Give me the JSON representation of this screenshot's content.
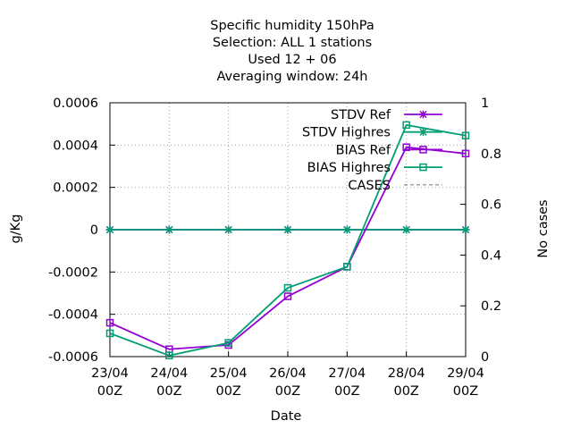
{
  "chart_data": {
    "type": "line",
    "title_lines": [
      "Specific humidity 150hPa",
      "Selection: ALL      1 stations",
      "Used  12 + 06",
      "Averaging window: 24h"
    ],
    "xlabel": "Date",
    "ylabel": "g/Kg",
    "y2label": "No cases",
    "x_ticks": [
      {
        "line1": "23/04",
        "line2": "00Z"
      },
      {
        "line1": "24/04",
        "line2": "00Z"
      },
      {
        "line1": "25/04",
        "line2": "00Z"
      },
      {
        "line1": "26/04",
        "line2": "00Z"
      },
      {
        "line1": "27/04",
        "line2": "00Z"
      },
      {
        "line1": "28/04",
        "line2": "00Z"
      },
      {
        "line1": "29/04",
        "line2": "00Z"
      }
    ],
    "ylim": [
      -0.0006,
      0.0006
    ],
    "y_ticks": [
      -0.0006,
      -0.0004,
      -0.0002,
      0,
      0.0002,
      0.0004,
      0.0006
    ],
    "y_tick_labels": [
      "-0.0006",
      "-0.0004",
      "-0.0002",
      "0",
      "0.0002",
      "0.0004",
      "0.0006"
    ],
    "y2lim": [
      0,
      1
    ],
    "y2_ticks": [
      0,
      0.2,
      0.4,
      0.6,
      0.8,
      1
    ],
    "y2_tick_labels": [
      "0",
      "0.2",
      "0.4",
      "0.6",
      "0.8",
      "1"
    ],
    "grid": true,
    "legend_position": "top-right",
    "series": [
      {
        "name": "STDV Ref",
        "color": "#9400d3",
        "marker": "star",
        "values": [
          0,
          0,
          0,
          0,
          0,
          0,
          0
        ]
      },
      {
        "name": "STDV Highres",
        "color": "#009e73",
        "marker": "star",
        "values": [
          0,
          0,
          0,
          0,
          0,
          0,
          0
        ]
      },
      {
        "name": "BIAS Ref",
        "color": "#9400d3",
        "marker": "square",
        "values": [
          -0.00044,
          -0.000565,
          -0.000545,
          -0.000315,
          -0.000175,
          0.00039,
          0.00036
        ]
      },
      {
        "name": "BIAS Highres",
        "color": "#009e73",
        "marker": "square",
        "values": [
          -0.00049,
          -0.000595,
          -0.000535,
          -0.000275,
          -0.000175,
          0.000495,
          0.000445
        ]
      },
      {
        "name": "CASES",
        "color": "#808080",
        "marker": "none",
        "dashed": true,
        "values": []
      }
    ]
  }
}
